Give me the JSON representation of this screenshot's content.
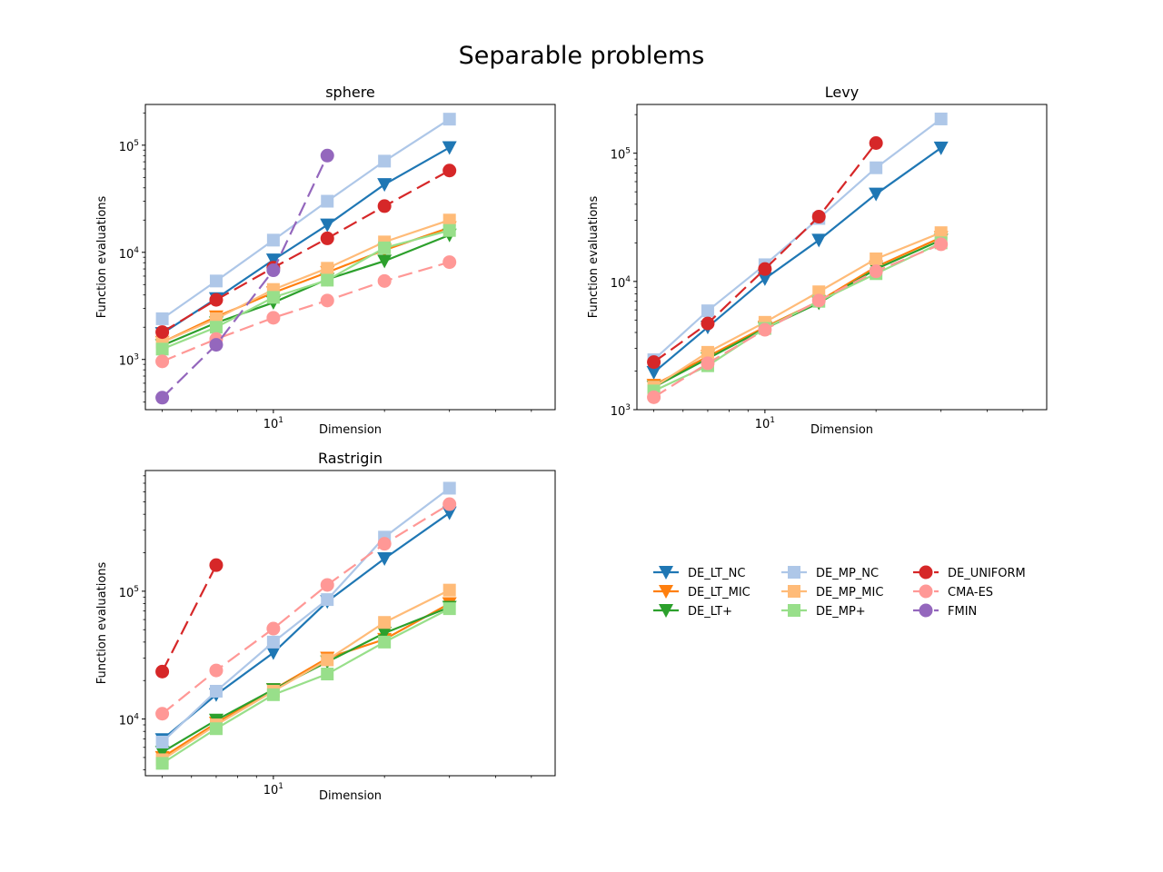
{
  "suptitle": "Separable problems",
  "legend": {
    "placement": "lower-right panel",
    "entries": [
      {
        "name": "DE_LT_NC",
        "color": "#1f77b4",
        "marker": "triangle-down",
        "dash": "solid"
      },
      {
        "name": "DE_LT_MIC",
        "color": "#ff7f0e",
        "marker": "triangle-down",
        "dash": "solid"
      },
      {
        "name": "DE_LT+",
        "color": "#2ca02c",
        "marker": "triangle-down",
        "dash": "solid"
      },
      {
        "name": "DE_MP_NC",
        "color": "#aec7e8",
        "marker": "square",
        "dash": "solid"
      },
      {
        "name": "DE_MP_MIC",
        "color": "#ffbb78",
        "marker": "square",
        "dash": "solid"
      },
      {
        "name": "DE_MP+",
        "color": "#98df8a",
        "marker": "square",
        "dash": "solid"
      },
      {
        "name": "DE_UNIFORM",
        "color": "#d62728",
        "marker": "circle",
        "dash": "dashed"
      },
      {
        "name": "CMA-ES",
        "color": "#ff9896",
        "marker": "circle",
        "dash": "dashed"
      },
      {
        "name": "FMIN",
        "color": "#9467bd",
        "marker": "circle",
        "dash": "dashed"
      }
    ]
  },
  "chart_data": [
    {
      "type": "line",
      "title": "sphere",
      "xlabel": "Dimension",
      "ylabel": "Function evaluations",
      "xscale": "log",
      "yscale": "log",
      "xlim": [
        4.5,
        58
      ],
      "ylim": [
        340,
        240000
      ],
      "x": [
        5,
        7,
        10,
        14,
        20,
        30
      ],
      "xticks": [
        {
          "value": 10,
          "label": "10^1"
        }
      ],
      "yticks": [
        {
          "value": 1000,
          "label": "10^3"
        },
        {
          "value": 10000,
          "label": "10^4"
        },
        {
          "value": 100000,
          "label": "10^5"
        }
      ],
      "series": [
        {
          "name": "DE_LT_NC",
          "values": [
            1750,
            3700,
            8500,
            18000,
            43000,
            95000
          ]
        },
        {
          "name": "DE_LT_MIC",
          "values": [
            1450,
            2500,
            4200,
            6500,
            10500,
            17000
          ]
        },
        {
          "name": "DE_LT+",
          "values": [
            1350,
            2200,
            3400,
            5600,
            8300,
            14500
          ]
        },
        {
          "name": "DE_MP_NC",
          "values": [
            2400,
            5400,
            13000,
            30000,
            71000,
            175000
          ]
        },
        {
          "name": "DE_MP_MIC",
          "values": [
            1450,
            2400,
            4500,
            7100,
            12500,
            20000
          ]
        },
        {
          "name": "DE_MP+",
          "values": [
            1250,
            2000,
            3800,
            5500,
            11000,
            16000
          ]
        },
        {
          "name": "DE_UNIFORM",
          "values": [
            1800,
            3600,
            7200,
            13500,
            27000,
            58000
          ]
        },
        {
          "name": "CMA-ES",
          "values": [
            960,
            1550,
            2450,
            3550,
            5400,
            8100
          ]
        },
        {
          "name": "FMIN",
          "values": [
            440,
            1370,
            6800,
            80000,
            null,
            null
          ]
        }
      ]
    },
    {
      "type": "line",
      "title": "Levy",
      "xlabel": "Dimension",
      "ylabel": "Function evaluations",
      "xscale": "log",
      "yscale": "log",
      "xlim": [
        4.5,
        58
      ],
      "ylim": [
        1000,
        240000
      ],
      "x": [
        5,
        7,
        10,
        14,
        20,
        30
      ],
      "xticks": [
        {
          "value": 10,
          "label": "10^1"
        }
      ],
      "yticks": [
        {
          "value": 1000,
          "label": "10^3"
        },
        {
          "value": 10000,
          "label": "10^4"
        },
        {
          "value": 100000,
          "label": "10^5"
        }
      ],
      "series": [
        {
          "name": "DE_LT_NC",
          "values": [
            1950,
            4400,
            10500,
            21000,
            48000,
            110000
          ]
        },
        {
          "name": "DE_LT_MIC",
          "values": [
            1550,
            2600,
            4400,
            7000,
            13000,
            22000
          ]
        },
        {
          "name": "DE_LT+",
          "values": [
            1500,
            2500,
            4300,
            6800,
            12500,
            21000
          ]
        },
        {
          "name": "DE_MP_NC",
          "values": [
            2450,
            5900,
            13500,
            31000,
            77000,
            185000
          ]
        },
        {
          "name": "DE_MP_MIC",
          "values": [
            1500,
            2800,
            4800,
            8300,
            15000,
            24000
          ]
        },
        {
          "name": "DE_MP+",
          "values": [
            1400,
            2200,
            4300,
            7000,
            11500,
            20000
          ]
        },
        {
          "name": "DE_UNIFORM",
          "values": [
            2350,
            4700,
            12500,
            32000,
            120000,
            null
          ]
        },
        {
          "name": "CMA-ES",
          "values": [
            1250,
            2300,
            4200,
            7100,
            12000,
            19500
          ]
        },
        {
          "name": "FMIN",
          "values": [
            null,
            null,
            null,
            null,
            null,
            null
          ]
        }
      ]
    },
    {
      "type": "line",
      "title": "Rastrigin",
      "xlabel": "Dimension",
      "ylabel": "Function evaluations",
      "xscale": "log",
      "yscale": "log",
      "xlim": [
        4.5,
        58
      ],
      "ylim": [
        3600,
        880000
      ],
      "x": [
        5,
        7,
        10,
        14,
        20,
        30
      ],
      "xticks": [
        {
          "value": 10,
          "label": "10^1"
        }
      ],
      "yticks": [
        {
          "value": 10000,
          "label": "10^4"
        },
        {
          "value": 100000,
          "label": "10^5"
        }
      ],
      "series": [
        {
          "name": "DE_LT_NC",
          "values": [
            6900,
            15500,
            33000,
            83000,
            180000,
            410000
          ]
        },
        {
          "name": "DE_LT_MIC",
          "values": [
            5000,
            9300,
            17000,
            30000,
            42000,
            80000
          ]
        },
        {
          "name": "DE_LT+",
          "values": [
            5500,
            9800,
            17000,
            28000,
            47000,
            75000
          ]
        },
        {
          "name": "DE_MP_NC",
          "values": [
            6600,
            16500,
            40000,
            86000,
            265000,
            640000
          ]
        },
        {
          "name": "DE_MP_MIC",
          "values": [
            4800,
            9000,
            16500,
            29000,
            57000,
            102000
          ]
        },
        {
          "name": "DE_MP+",
          "values": [
            4500,
            8400,
            15500,
            22500,
            40000,
            73000
          ]
        },
        {
          "name": "DE_UNIFORM",
          "values": [
            23500,
            160000,
            null,
            null,
            null,
            null
          ]
        },
        {
          "name": "CMA-ES",
          "values": [
            11000,
            24000,
            51000,
            112000,
            235000,
            480000
          ]
        },
        {
          "name": "FMIN",
          "values": [
            null,
            null,
            null,
            null,
            null,
            null
          ]
        }
      ]
    }
  ]
}
